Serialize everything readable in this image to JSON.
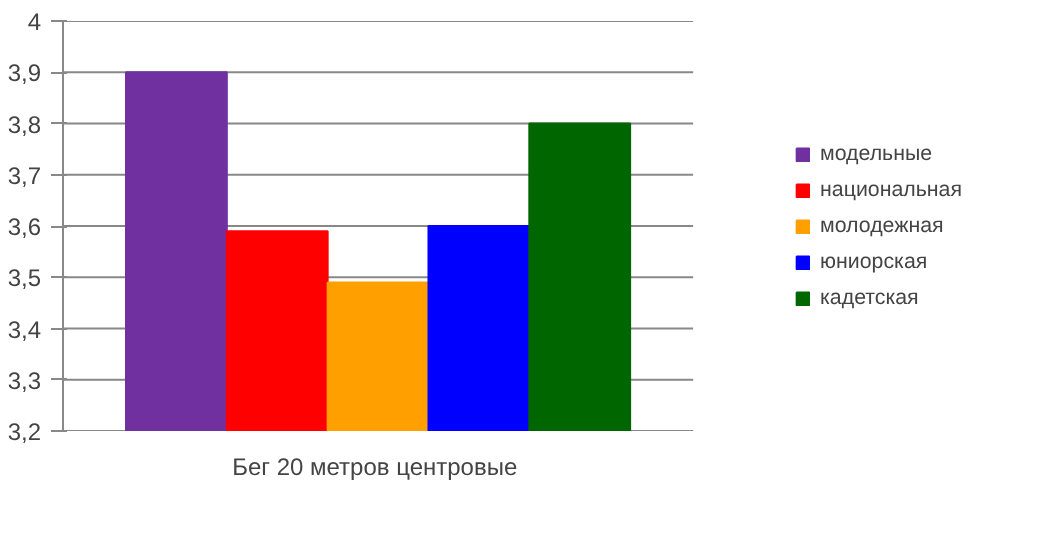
{
  "chart_data": {
    "type": "bar",
    "categories": [
      "Бег 20 метров  центровые"
    ],
    "series": [
      {
        "name": "модельные",
        "color": "#7030a0",
        "values": [
          3.9
        ]
      },
      {
        "name": "национальная",
        "color": "#ff0000",
        "values": [
          3.59
        ]
      },
      {
        "name": "молодежная",
        "color": "#ffa000",
        "values": [
          3.49
        ]
      },
      {
        "name": "юниорская",
        "color": "#0000ff",
        "values": [
          3.6
        ]
      },
      {
        "name": "кадетская",
        "color": "#006600",
        "values": [
          3.8
        ]
      }
    ],
    "ylim": [
      3.2,
      4
    ],
    "yticks": [
      {
        "value": 3.2,
        "label": "3,2"
      },
      {
        "value": 3.3,
        "label": "3,3"
      },
      {
        "value": 3.4,
        "label": "3,4"
      },
      {
        "value": 3.5,
        "label": "3,5"
      },
      {
        "value": 3.6,
        "label": "3,6"
      },
      {
        "value": 3.7,
        "label": "3,7"
      },
      {
        "value": 3.8,
        "label": "3,8"
      },
      {
        "value": 3.9,
        "label": "3,9"
      },
      4
    ],
    "grid": "y",
    "legend": "right"
  }
}
